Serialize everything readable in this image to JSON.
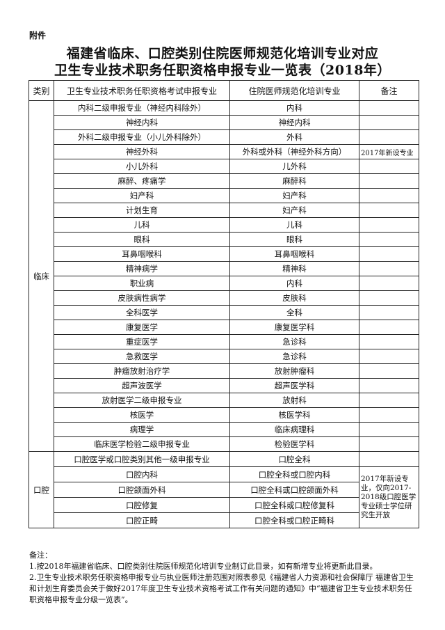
{
  "attachment_label": "附件",
  "title_line1": "福建省临床、口腔类别住院医师规范化培训专业对应",
  "title_line2": "卫生专业技术职务任职资格申报专业一览表（2018年）",
  "table": {
    "headers": [
      "类别",
      "卫生专业技术职务任职资格考试申报专业",
      "住院医师规范化培训专业",
      "备注"
    ],
    "groups": [
      {
        "category": "临床",
        "rows": [
          {
            "exam": "内科二级申报专业（神经内科除外）",
            "training": "内科",
            "note": ""
          },
          {
            "exam": "神经内科",
            "training": "神经内科",
            "note": ""
          },
          {
            "exam": "外科二级申报专业（小儿外科除外）",
            "training": "外科",
            "note": ""
          },
          {
            "exam": "神经外科",
            "training": "外科或外科（神经外科方向）",
            "note": "2017年新设专业"
          },
          {
            "exam": "小儿外科",
            "training": "儿外科",
            "note": ""
          },
          {
            "exam": "麻醉、疼痛学",
            "training": "麻醉科",
            "note": ""
          },
          {
            "exam": "妇产科",
            "training": "妇产科",
            "note": ""
          },
          {
            "exam": "计划生育",
            "training": "妇产科",
            "note": ""
          },
          {
            "exam": "儿科",
            "training": "儿科",
            "note": ""
          },
          {
            "exam": "眼科",
            "training": "眼科",
            "note": ""
          },
          {
            "exam": "耳鼻咽喉科",
            "training": "耳鼻咽喉科",
            "note": ""
          },
          {
            "exam": "精神病学",
            "training": "精神科",
            "note": ""
          },
          {
            "exam": "职业病",
            "training": "内科",
            "note": ""
          },
          {
            "exam": "皮肤病性病学",
            "training": "皮肤科",
            "note": ""
          },
          {
            "exam": "全科医学",
            "training": "全科",
            "note": ""
          },
          {
            "exam": "康复医学",
            "training": "康复医学科",
            "note": ""
          },
          {
            "exam": "重症医学",
            "training": "急诊科",
            "note": ""
          },
          {
            "exam": "急救医学",
            "training": "急诊科",
            "note": ""
          },
          {
            "exam": "肿瘤放射治疗学",
            "training": "放射肿瘤科",
            "note": ""
          },
          {
            "exam": "超声波医学",
            "training": "超声医学科",
            "note": ""
          },
          {
            "exam": "放射医学二级申报专业",
            "training": "放射科",
            "note": ""
          },
          {
            "exam": "核医学",
            "training": "核医学科",
            "note": ""
          },
          {
            "exam": "病理学",
            "training": "临床病理科",
            "note": ""
          },
          {
            "exam": "临床医学检验二级申报专业",
            "training": "检验医学科",
            "note": ""
          }
        ]
      },
      {
        "category": "口腔",
        "rows": [
          {
            "exam": "口腔医学或口腔类别其他一级申报专业",
            "training": "口腔全科",
            "note": ""
          },
          {
            "exam": "口腔内科",
            "training": "口腔全科或口腔内科"
          },
          {
            "exam": "口腔颌面外科",
            "training": "口腔全科或口腔颌面外科"
          },
          {
            "exam": "口腔修复",
            "training": "口腔全科或口腔修复科"
          },
          {
            "exam": "口腔正畸",
            "training": "口腔全科或口腔正畸科"
          }
        ],
        "merged_note": "2017年新设专业，仅向2017-2018级口腔医学专业硕士学位研究生开放"
      }
    ]
  },
  "notes": {
    "heading": "备注：",
    "items": [
      "1.按2018年福建省临床、口腔类别住院医师规范化培训专业制订此目录，如有新增专业将更新此目录。",
      "2.卫生专业技术职务任职资格申报专业与执业医师注册范围对照表参见《福建省人力资源和社会保障厅 福建省卫生和计划生育委员会关于做好2017年度卫生专业技术资格考试工作有关问题的通知》中“福建省卫生专业技术职务任职资格申报专业分级一览表”。"
    ]
  }
}
